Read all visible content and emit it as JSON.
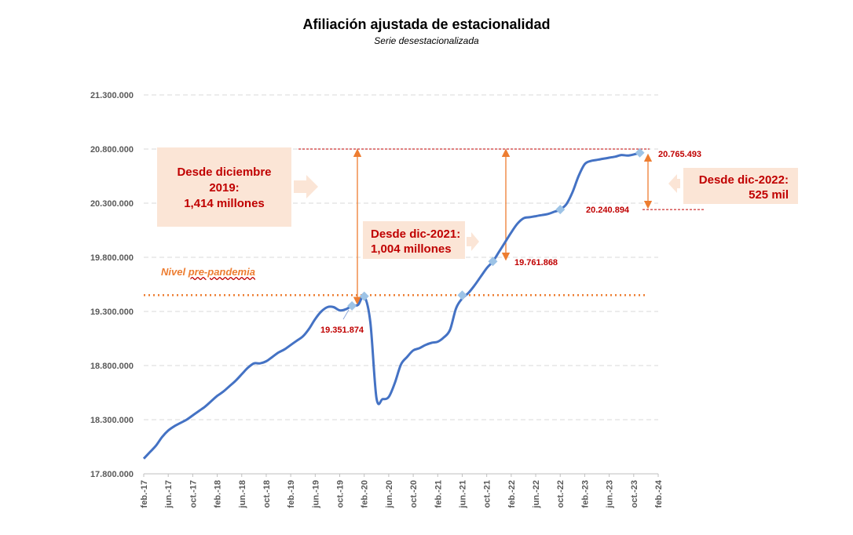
{
  "chart_data": {
    "type": "line",
    "title": "Afiliación ajustada de estacionalidad",
    "subtitle": "Serie desestacionalizada",
    "ylim": [
      17800000,
      21300000
    ],
    "y_ticks": [
      "17.800.000",
      "18.300.000",
      "18.800.000",
      "19.300.000",
      "19.800.000",
      "20.300.000",
      "20.800.000",
      "21.300.000"
    ],
    "x_ticks": [
      "feb.-17",
      "jun.-17",
      "oct.-17",
      "feb.-18",
      "jun.-18",
      "oct.-18",
      "feb.-19",
      "jun.-19",
      "oct.-19",
      "feb.-20",
      "jun.-20",
      "oct.-20",
      "feb.-21",
      "jun.-21",
      "oct.-21",
      "feb.-22",
      "jun.-22",
      "oct.-22",
      "feb.-23",
      "jun.-23",
      "oct.-23",
      "feb.-24"
    ],
    "grid": true,
    "series": [
      {
        "color": "#4472c4",
        "points": [
          [
            "2017-02",
            17940000
          ],
          [
            "2017-03",
            18000000
          ],
          [
            "2017-04",
            18060000
          ],
          [
            "2017-05",
            18140000
          ],
          [
            "2017-06",
            18200000
          ],
          [
            "2017-07",
            18240000
          ],
          [
            "2017-08",
            18270000
          ],
          [
            "2017-09",
            18300000
          ],
          [
            "2017-10",
            18340000
          ],
          [
            "2017-11",
            18380000
          ],
          [
            "2017-12",
            18420000
          ],
          [
            "2018-01",
            18470000
          ],
          [
            "2018-02",
            18520000
          ],
          [
            "2018-03",
            18560000
          ],
          [
            "2018-04",
            18610000
          ],
          [
            "2018-05",
            18660000
          ],
          [
            "2018-06",
            18720000
          ],
          [
            "2018-07",
            18780000
          ],
          [
            "2018-08",
            18820000
          ],
          [
            "2018-09",
            18820000
          ],
          [
            "2018-10",
            18840000
          ],
          [
            "2018-11",
            18880000
          ],
          [
            "2018-12",
            18920000
          ],
          [
            "2019-01",
            18950000
          ],
          [
            "2019-02",
            18990000
          ],
          [
            "2019-03",
            19030000
          ],
          [
            "2019-04",
            19070000
          ],
          [
            "2019-05",
            19140000
          ],
          [
            "2019-06",
            19230000
          ],
          [
            "2019-07",
            19300000
          ],
          [
            "2019-08",
            19340000
          ],
          [
            "2019-09",
            19340000
          ],
          [
            "2019-10",
            19310000
          ],
          [
            "2019-11",
            19320000
          ],
          [
            "2019-12",
            19351874
          ],
          [
            "2020-01",
            19360000
          ],
          [
            "2020-02",
            19440000
          ],
          [
            "2020-03",
            19200000
          ],
          [
            "2020-04",
            18500000
          ],
          [
            "2020-05",
            18490000
          ],
          [
            "2020-06",
            18510000
          ],
          [
            "2020-07",
            18640000
          ],
          [
            "2020-08",
            18810000
          ],
          [
            "2020-09",
            18880000
          ],
          [
            "2020-10",
            18940000
          ],
          [
            "2020-11",
            18960000
          ],
          [
            "2020-12",
            18990000
          ],
          [
            "2021-01",
            19010000
          ],
          [
            "2021-02",
            19020000
          ],
          [
            "2021-03",
            19060000
          ],
          [
            "2021-04",
            19130000
          ],
          [
            "2021-05",
            19330000
          ],
          [
            "2021-06",
            19420000
          ],
          [
            "2021-07",
            19470000
          ],
          [
            "2021-08",
            19540000
          ],
          [
            "2021-09",
            19620000
          ],
          [
            "2021-10",
            19700000
          ],
          [
            "2021-11",
            19761868
          ],
          [
            "2021-12",
            19850000
          ],
          [
            "2022-01",
            19940000
          ],
          [
            "2022-02",
            20030000
          ],
          [
            "2022-03",
            20110000
          ],
          [
            "2022-04",
            20160000
          ],
          [
            "2022-05",
            20170000
          ],
          [
            "2022-06",
            20180000
          ],
          [
            "2022-07",
            20190000
          ],
          [
            "2022-08",
            20200000
          ],
          [
            "2022-09",
            20220000
          ],
          [
            "2022-10",
            20240894
          ],
          [
            "2022-11",
            20290000
          ],
          [
            "2022-12",
            20400000
          ],
          [
            "2023-01",
            20550000
          ],
          [
            "2023-02",
            20660000
          ],
          [
            "2023-03",
            20690000
          ],
          [
            "2023-04",
            20700000
          ],
          [
            "2023-05",
            20710000
          ],
          [
            "2023-06",
            20720000
          ],
          [
            "2023-07",
            20730000
          ],
          [
            "2023-08",
            20745000
          ],
          [
            "2023-09",
            20740000
          ],
          [
            "2023-10",
            20750000
          ],
          [
            "2023-11",
            20765493
          ]
        ]
      }
    ],
    "markers": [
      {
        "date": "2019-12",
        "value": 19351874,
        "label": "19.351.874"
      },
      {
        "date": "2020-02",
        "value": 19440000,
        "label": ""
      },
      {
        "date": "2021-06",
        "value": 19450000,
        "label": ""
      },
      {
        "date": "2021-11",
        "value": 19761868,
        "label": "19.761.868"
      },
      {
        "date": "2022-10",
        "value": 20240894,
        "label": "20.240.894"
      },
      {
        "date": "2023-11",
        "value": 20765493,
        "label": "20.765.493"
      }
    ],
    "reference_lines": [
      {
        "value": 19450000,
        "color": "#ed7d31",
        "style": "dotted",
        "label": "Nivel pre-pandemia"
      },
      {
        "value": 20800000,
        "color": "#c00000",
        "style": "dashed"
      },
      {
        "value": 20240894,
        "color": "#c00000",
        "style": "dashed"
      }
    ],
    "annotations": {
      "box1": [
        "Desde diciembre",
        "2019:",
        "1,414 millones"
      ],
      "box2": [
        "Desde dic-2021:",
        "1,004 millones"
      ],
      "box3": [
        "Desde dic-2022:",
        "525 mil"
      ],
      "prepandemic_prefix": "Nivel ",
      "prepandemic_underlined": "pre-pandemia"
    }
  },
  "colors": {
    "line": "#4472c4",
    "marker": "#9dc3e6",
    "arrow": "#ed7d31",
    "accent": "#c00000",
    "box": "#fbe5d6"
  }
}
